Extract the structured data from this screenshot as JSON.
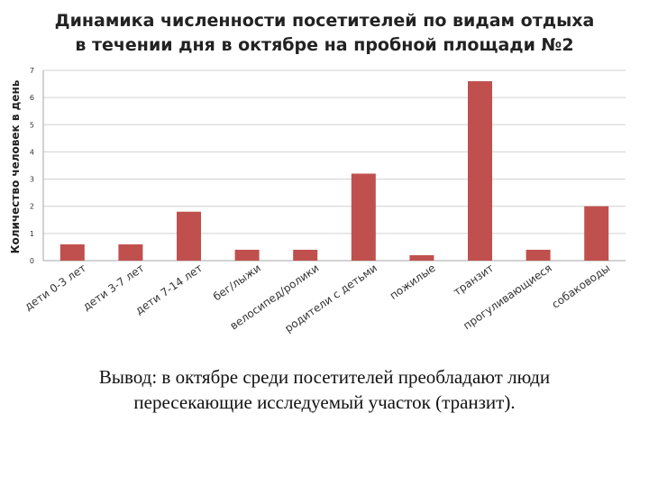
{
  "title_line1": "Динамика численности посетителей по видам отдыха",
  "title_line2": "в течении дня в октябре на пробной площади №2",
  "conclusion_line1": "Вывод: в октябре среди посетителей преобладают люди",
  "conclusion_line2": "пересекающие исследуемый участок (транзит).",
  "colors": {
    "bar": "#c0504d",
    "grid": "#d0d0d0",
    "axis": "#a6a6a6"
  },
  "chart_data": {
    "type": "bar",
    "title": "Динамика численности посетителей по видам отдыха в течении дня в октябре на пробной площади №2",
    "ylabel": "Количество человек в день",
    "xlabel": "",
    "ylim": [
      0,
      7
    ],
    "yticks": [
      0,
      1,
      2,
      3,
      4,
      5,
      6,
      7
    ],
    "grid": true,
    "categories": [
      "дети 0-3 лет",
      "дети 3-7 лет",
      "дети 7-14 лет",
      "бег/лыжи",
      "велосипед/ролики",
      "родители с детьми",
      "пожилые",
      "транзит",
      "прогуливающиеся",
      "собаководы"
    ],
    "values": [
      0.6,
      0.6,
      1.8,
      0.4,
      0.4,
      3.2,
      0.2,
      6.6,
      0.4,
      2.0
    ]
  }
}
